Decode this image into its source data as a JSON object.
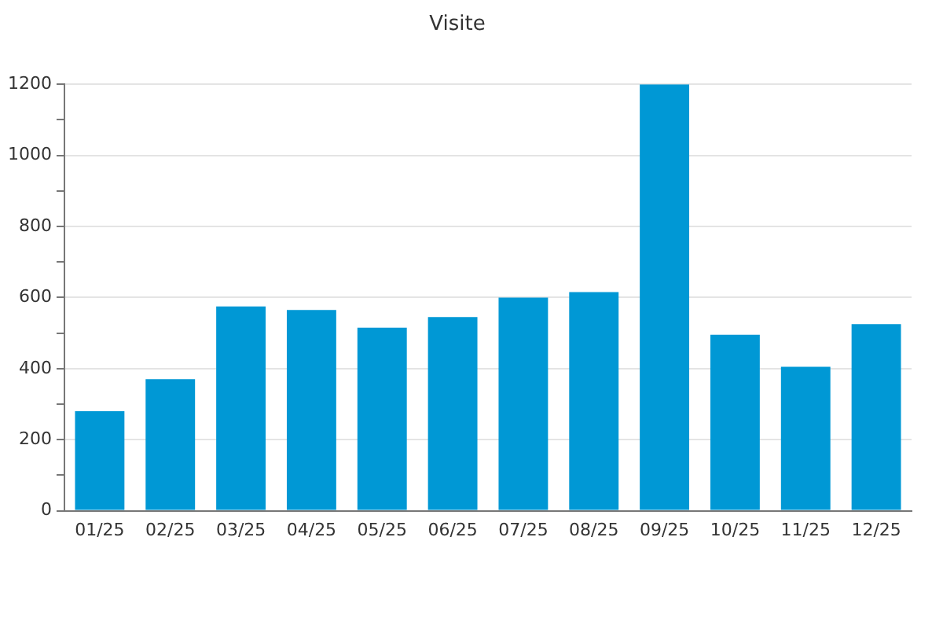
{
  "chart_data": {
    "type": "bar",
    "title": "Visite",
    "categories": [
      "01/25",
      "02/25",
      "03/25",
      "04/25",
      "05/25",
      "06/25",
      "07/25",
      "08/25",
      "09/25",
      "10/25",
      "11/25",
      "12/25"
    ],
    "values": [
      280,
      370,
      575,
      565,
      515,
      545,
      600,
      615,
      1200,
      495,
      405,
      525
    ],
    "color": "#0098d5",
    "ylim": [
      0,
      1200
    ],
    "yticks": [
      0,
      {
        "value": 100,
        "label": null
      },
      200,
      {
        "value": 300,
        "label": null
      },
      400,
      {
        "value": 500,
        "label": null
      },
      600,
      {
        "value": 700,
        "label": null
      },
      800,
      {
        "value": 900,
        "label": null
      },
      1000,
      {
        "value": 1100,
        "label": null
      },
      1200
    ],
    "grid": "y"
  }
}
